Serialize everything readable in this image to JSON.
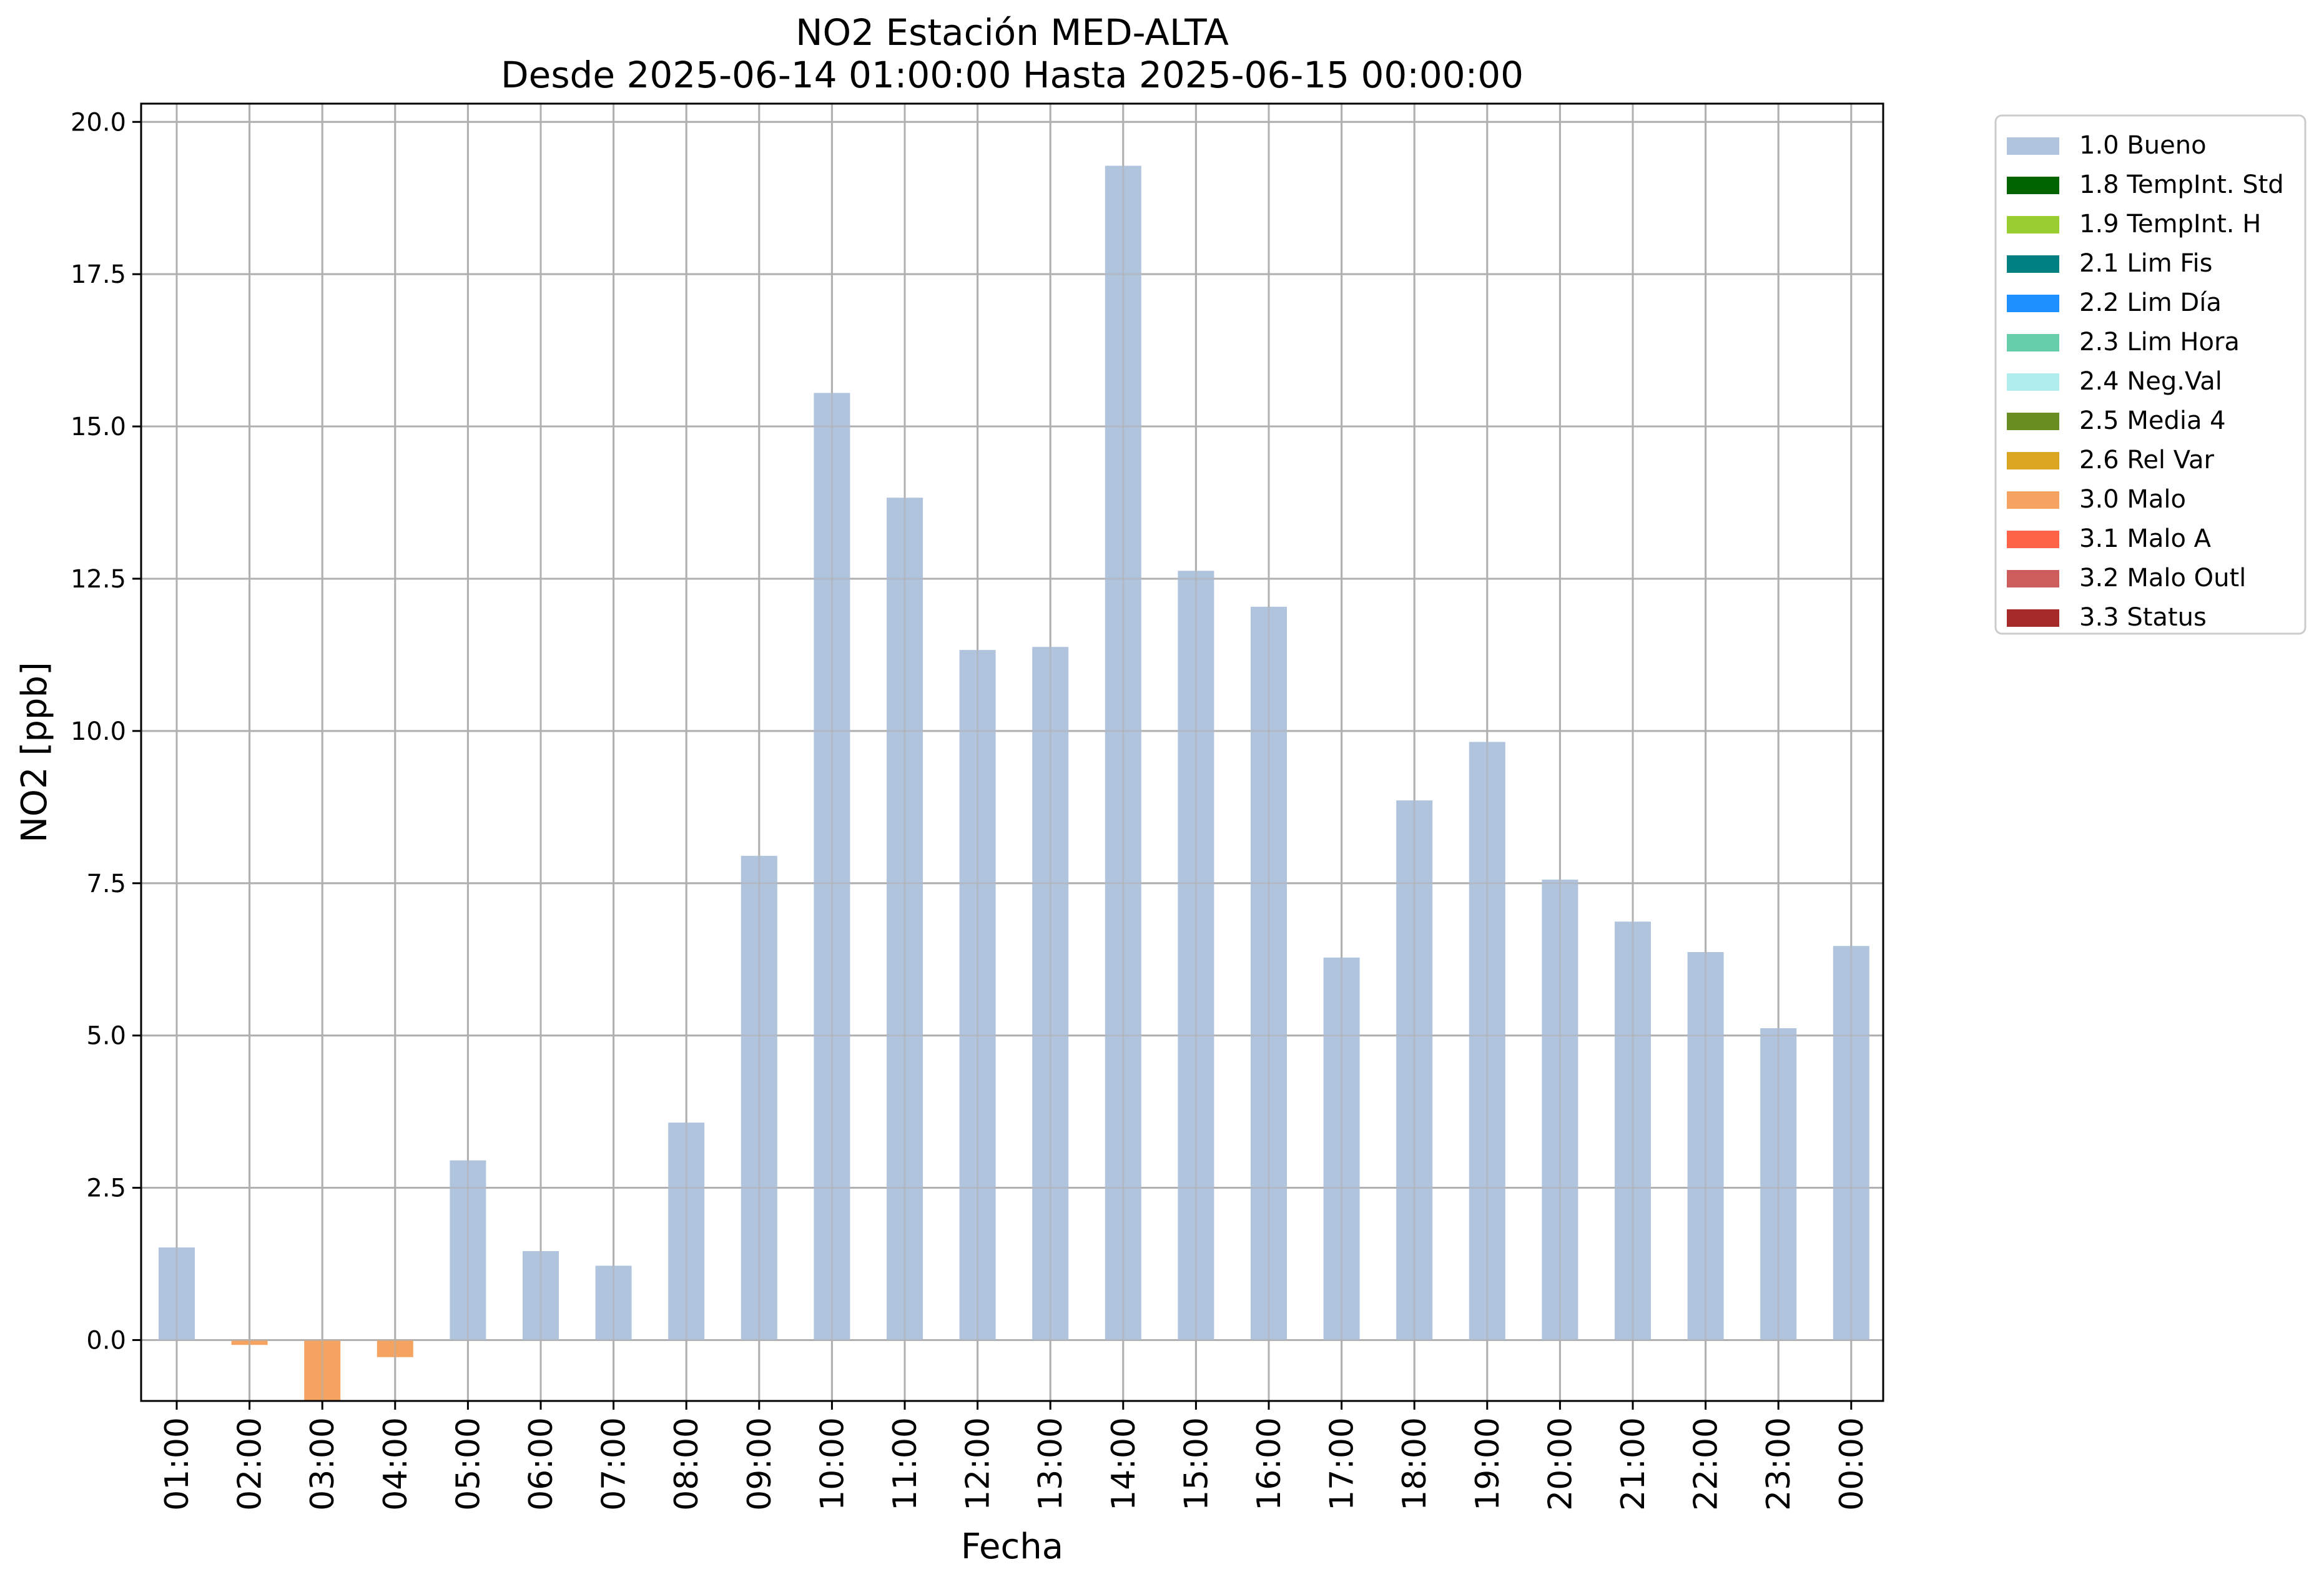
{
  "chart_data": {
    "type": "bar",
    "title": "NO2 Estación MED-ALTA",
    "subtitle": "Desde 2025-06-14 01:00:00 Hasta 2025-06-15 00:00:00",
    "xlabel": "Fecha",
    "ylabel": "NO2 [ppb]",
    "ylim": [
      -1.0,
      20.3
    ],
    "yticks": [
      0.0,
      2.5,
      5.0,
      7.5,
      10.0,
      12.5,
      15.0,
      17.5,
      20.0
    ],
    "ytick_labels": [
      "0.0",
      "2.5",
      "5.0",
      "7.5",
      "10.0",
      "12.5",
      "15.0",
      "17.5",
      "20.0"
    ],
    "grid": true,
    "legend_position": "outside-top-right",
    "categories": [
      "01:00",
      "02:00",
      "03:00",
      "04:00",
      "05:00",
      "06:00",
      "07:00",
      "08:00",
      "09:00",
      "10:00",
      "11:00",
      "12:00",
      "13:00",
      "14:00",
      "15:00",
      "16:00",
      "17:00",
      "18:00",
      "19:00",
      "20:00",
      "21:00",
      "22:00",
      "23:00",
      "00:00"
    ],
    "values": [
      1.52,
      -0.08,
      -1.05,
      -0.28,
      2.95,
      1.46,
      1.22,
      3.57,
      7.95,
      15.55,
      13.83,
      11.33,
      11.38,
      19.28,
      12.63,
      12.04,
      6.28,
      8.86,
      9.82,
      7.56,
      6.87,
      6.37,
      5.12,
      6.47
    ],
    "value_flags": [
      "1.0 Bueno",
      "3.0 Malo",
      "3.0 Malo",
      "3.0 Malo",
      "1.0 Bueno",
      "1.0 Bueno",
      "1.0 Bueno",
      "1.0 Bueno",
      "1.0 Bueno",
      "1.0 Bueno",
      "1.0 Bueno",
      "1.0 Bueno",
      "1.0 Bueno",
      "1.0 Bueno",
      "1.0 Bueno",
      "1.0 Bueno",
      "1.0 Bueno",
      "1.0 Bueno",
      "1.0 Bueno",
      "1.0 Bueno",
      "1.0 Bueno",
      "1.0 Bueno",
      "1.0 Bueno",
      "1.0 Bueno"
    ],
    "legend": [
      {
        "label": "1.0 Bueno",
        "color": "#b0c4de"
      },
      {
        "label": "1.8 TempInt. Std",
        "color": "#006400"
      },
      {
        "label": "1.9 TempInt. H",
        "color": "#9acd32"
      },
      {
        "label": "2.1 Lim Fis",
        "color": "#008080"
      },
      {
        "label": "2.2 Lim Día",
        "color": "#1e90ff"
      },
      {
        "label": "2.3 Lim Hora",
        "color": "#66cdaa"
      },
      {
        "label": "2.4 Neg.Val",
        "color": "#afeeee"
      },
      {
        "label": "2.5 Media 4",
        "color": "#6b8e23"
      },
      {
        "label": "2.6 Rel Var",
        "color": "#daa520"
      },
      {
        "label": "3.0 Malo",
        "color": "#f4a460"
      },
      {
        "label": "3.1 Malo A",
        "color": "#ff6347"
      },
      {
        "label": "3.2 Malo Outl",
        "color": "#cd5c5c"
      },
      {
        "label": "3.3 Status",
        "color": "#a52a2a"
      }
    ],
    "colors": {
      "grid": "#b0b0b0",
      "axis": "#000000",
      "legend_border": "#cccccc"
    }
  }
}
